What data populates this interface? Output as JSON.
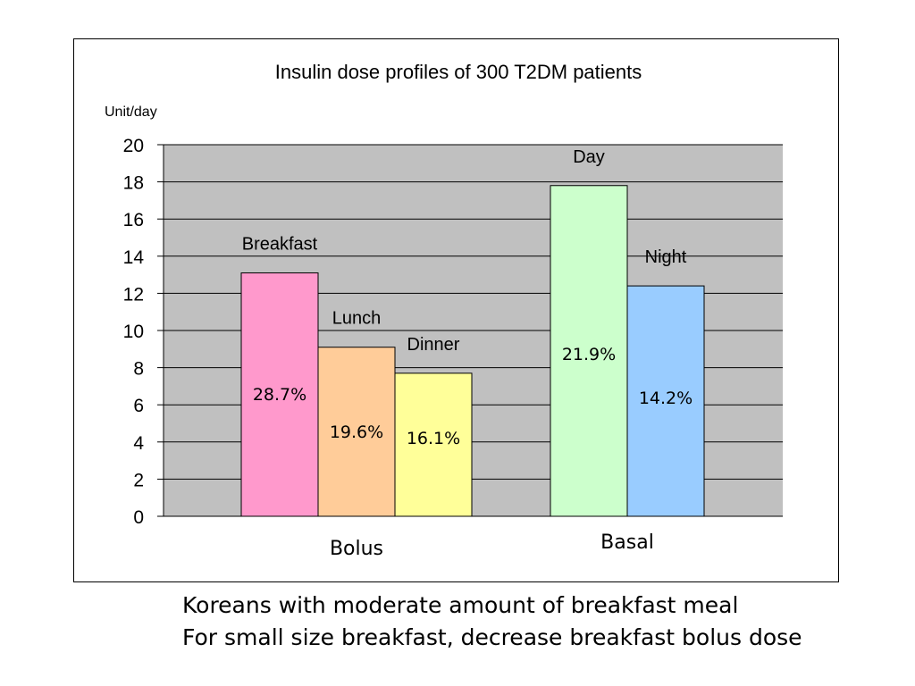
{
  "chart_data": {
    "type": "bar",
    "title": "Insulin dose profiles of 300 T2DM patients",
    "ylabel": "Unit/day",
    "ylim": [
      0,
      20
    ],
    "yticks": [
      0,
      2,
      4,
      6,
      8,
      10,
      12,
      14,
      16,
      18,
      20
    ],
    "grid": true,
    "groups": [
      {
        "label": "Bolus",
        "bars": [
          {
            "name": "Breakfast",
            "value": 13.1,
            "percent_label": "28.7%",
            "color": "#ff99cc"
          },
          {
            "name": "Lunch",
            "value": 9.1,
            "percent_label": "19.6%",
            "color": "#ffcc99"
          },
          {
            "name": "Dinner",
            "value": 7.7,
            "percent_label": "16.1%",
            "color": "#ffff99"
          }
        ]
      },
      {
        "label": "Basal",
        "bars": [
          {
            "name": "Day",
            "value": 17.8,
            "percent_label": "21.9%",
            "color": "#ccffcc"
          },
          {
            "name": "Night",
            "value": 12.4,
            "percent_label": "14.2%",
            "color": "#99ccff"
          }
        ]
      }
    ],
    "plot_background": "#c0c0c0"
  },
  "captions": [
    "Koreans with moderate amount of breakfast meal",
    "For small size breakfast, decrease breakfast bolus dose"
  ]
}
